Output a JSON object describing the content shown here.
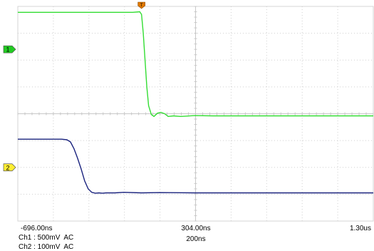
{
  "chart_data": {
    "type": "line",
    "title": "",
    "xlabel": "",
    "ylabel": "",
    "xlim": [
      -696,
      1304
    ],
    "ylim": [
      -4,
      4
    ],
    "grid": true,
    "x_tick_labels": {
      "left": "-696.00ns",
      "center": "304.00ns",
      "right": "1.30us"
    },
    "timebase_label": "200ns",
    "channel_markers": [
      {
        "id": "ch1-marker",
        "label": "1",
        "color": "#22cc22",
        "level": 2.4
      },
      {
        "id": "ch2-marker",
        "label": "2",
        "color": "#ffee33",
        "level": -2.0
      }
    ],
    "trigger_marker": {
      "label": "T",
      "color": "#e07800",
      "x": 0
    },
    "channel_settings": [
      {
        "text": "Ch1 : 500mV  AC"
      },
      {
        "text": "Ch2 : 100mV  AC"
      }
    ],
    "series": [
      {
        "color": "#33dd33",
        "x": [
          -696,
          -50,
          -10,
          0,
          10,
          20,
          30,
          40,
          55,
          70,
          90,
          110,
          130,
          150,
          180,
          220,
          300,
          400,
          500,
          700,
          900,
          1100,
          1304
        ],
        "y": [
          3.78,
          3.78,
          3.8,
          3.7,
          3.0,
          2.0,
          1.0,
          0.3,
          -0.03,
          -0.1,
          0.02,
          0.05,
          0.0,
          -0.1,
          -0.08,
          -0.1,
          -0.07,
          -0.08,
          -0.08,
          -0.08,
          -0.08,
          -0.08,
          -0.08
        ]
      },
      {
        "color": "#1a237e",
        "x": [
          -696,
          -450,
          -420,
          -400,
          -380,
          -360,
          -340,
          -320,
          -300,
          -280,
          -260,
          -240,
          -220,
          -200,
          -150,
          -100,
          0,
          100,
          300,
          500,
          800,
          1304
        ],
        "y": [
          -0.95,
          -0.95,
          -0.97,
          -1.05,
          -1.3,
          -1.65,
          -2.05,
          -2.5,
          -2.8,
          -2.93,
          -2.96,
          -2.95,
          -2.96,
          -2.95,
          -2.95,
          -2.93,
          -2.95,
          -2.94,
          -2.95,
          -2.95,
          -2.95,
          -2.95
        ]
      }
    ]
  }
}
